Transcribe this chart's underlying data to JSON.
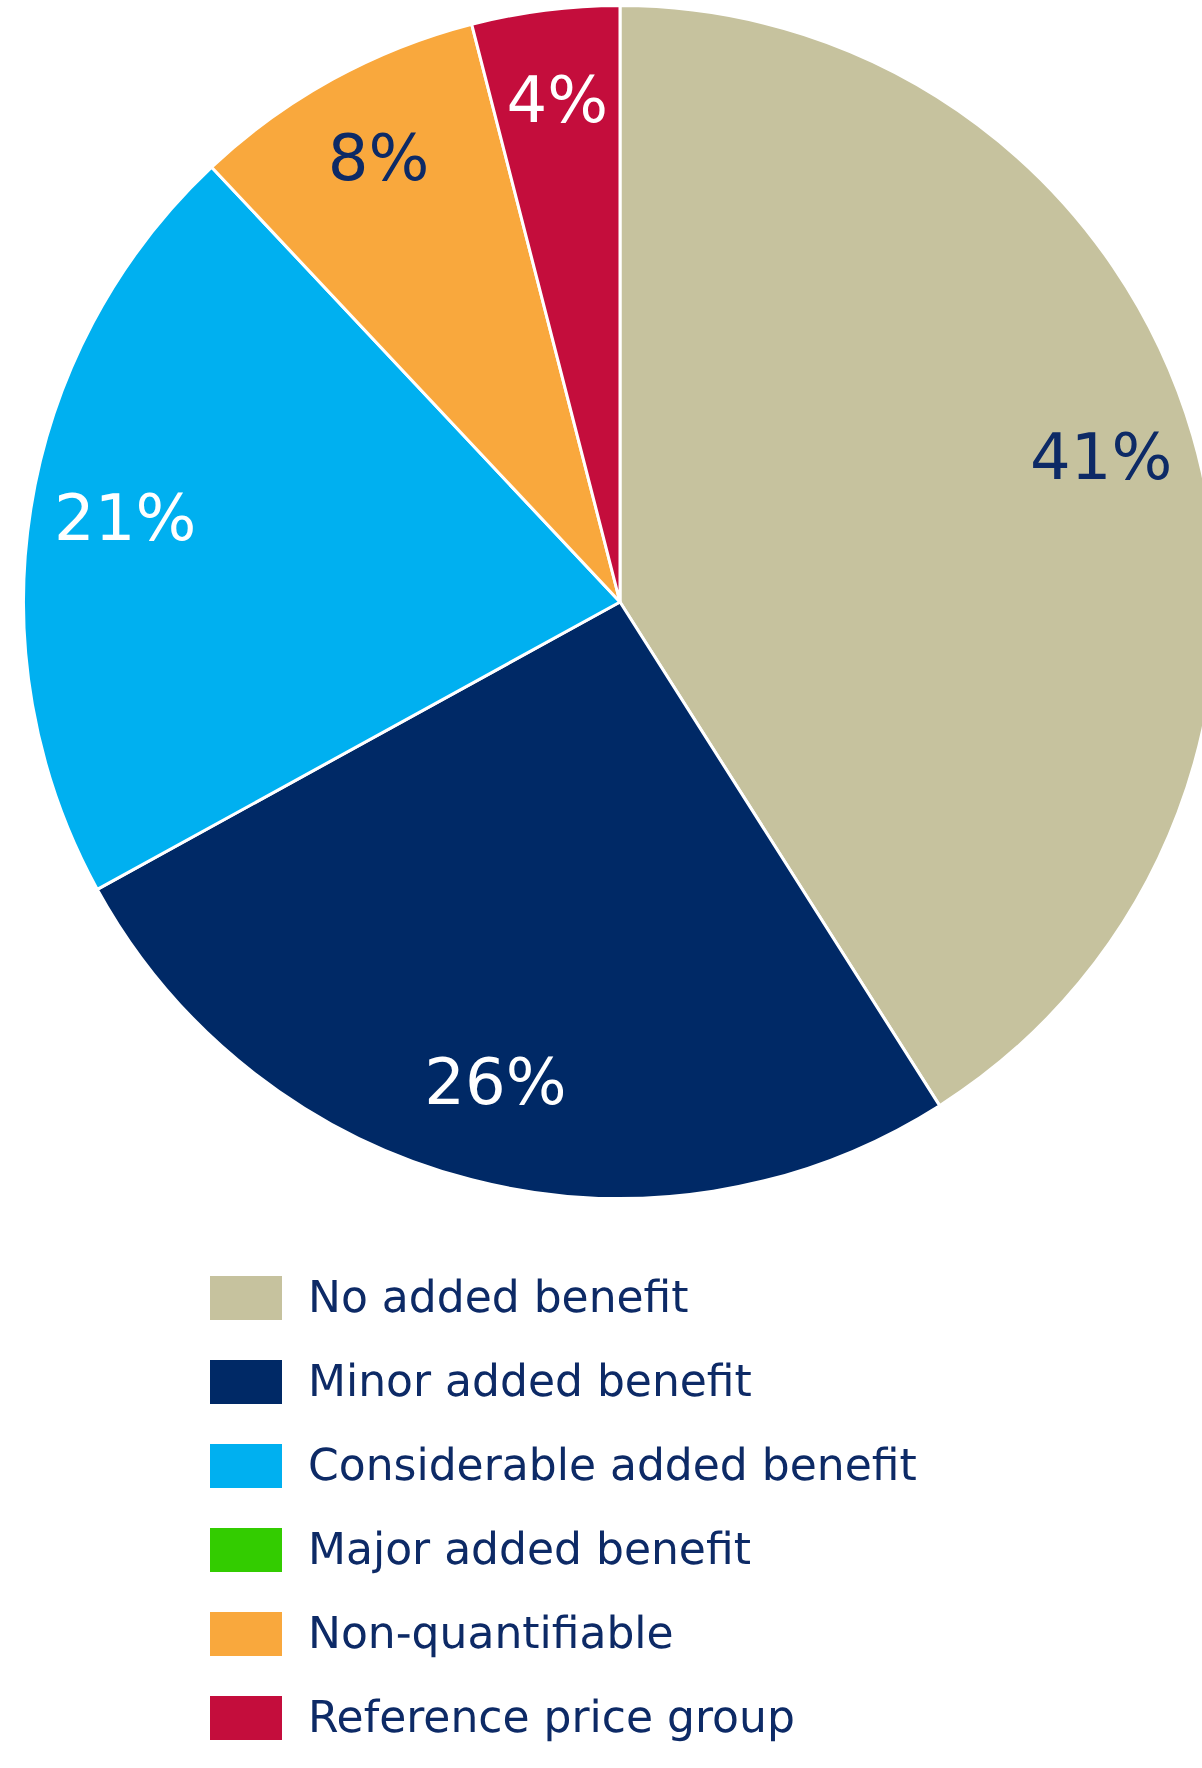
{
  "chart_data": {
    "type": "pie",
    "categories": [
      "No added benefit",
      "Minor added benefit",
      "Considerable added benefit",
      "Major added benefit",
      "Non-quantifiable",
      "Reference price group"
    ],
    "values": [
      41,
      26,
      21,
      0,
      8,
      4
    ],
    "colors": [
      "#c6c29e",
      "#002966",
      "#00b0f0",
      "#33cc00",
      "#f9a83d",
      "#c40d3c"
    ],
    "value_labels": [
      "41%",
      "26%",
      "21%",
      null,
      "8%",
      "4%"
    ],
    "legend": "bottom"
  }
}
